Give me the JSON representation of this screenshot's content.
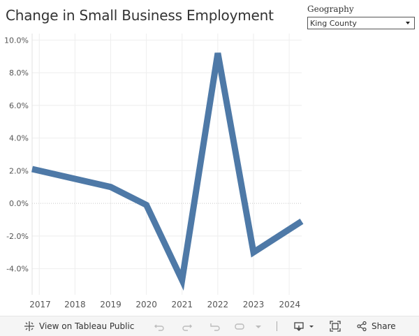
{
  "title": "Change in Small Business Employment",
  "filter": {
    "label": "Geography",
    "value": "King County"
  },
  "chart_data": {
    "type": "line",
    "x": [
      "2016.8",
      "2017",
      "2018",
      "2019",
      "2020",
      "2021",
      "2022",
      "2023",
      "2024",
      "2024.35"
    ],
    "x_tick_labels": [
      "2017",
      "2018",
      "2019",
      "2020",
      "2021",
      "2022",
      "2023",
      "2024"
    ],
    "x_ticks": [
      2017,
      2018,
      2019,
      2020,
      2021,
      2022,
      2023,
      2024
    ],
    "points": [
      {
        "x": 2016.8,
        "y": 2.1
      },
      {
        "x": 2019,
        "y": 1.0
      },
      {
        "x": 2020,
        "y": -0.1
      },
      {
        "x": 2021,
        "y": -4.7
      },
      {
        "x": 2022,
        "y": 9.2
      },
      {
        "x": 2023,
        "y": -3.0
      },
      {
        "x": 2024.35,
        "y": -1.1
      }
    ],
    "y_ticks": [
      -4.0,
      -2.0,
      0.0,
      2.0,
      4.0,
      6.0,
      8.0,
      10.0
    ],
    "y_tick_labels": [
      "-4.0%",
      "-2.0%",
      "0.0%",
      "2.0%",
      "4.0%",
      "6.0%",
      "8.0%",
      "10.0%"
    ],
    "ylim": [
      -5.6,
      10.4
    ],
    "xlim": [
      2016.8,
      2024.35
    ],
    "line_color": "#4e79a7",
    "grid": true,
    "xlabel": "",
    "ylabel": ""
  },
  "toolbar": {
    "view_on_label": "View on Tableau Public",
    "share_label": "Share"
  }
}
